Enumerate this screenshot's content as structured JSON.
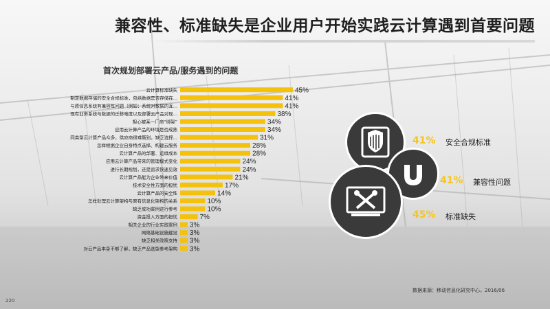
{
  "page": {
    "title": "兼容性、标准缺失是企业用户开始实践云计算遇到首要问题",
    "source": "数据来源：移动信息化研究中心，2016/06",
    "page_number": "220"
  },
  "colors": {
    "bar": "#f4c20d",
    "accent_text": "#f5c51e",
    "dark_circle": "#3a3a3a"
  },
  "highlights": [
    {
      "pct": "41%",
      "label": "安全合规标准",
      "icon": "shield-document-icon"
    },
    {
      "pct": "41%",
      "label": "兼容性问题",
      "icon": "magnet-icon"
    },
    {
      "pct": "45%",
      "label": "标准缺失",
      "icon": "monitor-tools-icon"
    }
  ],
  "chart_data": {
    "type": "bar",
    "orientation": "horizontal",
    "title": "首次规划部署云产品/服务遇到的问题",
    "value_suffix": "%",
    "categories": [
      "云计算标准缺失",
      "制定数据存储的安全合规标准，包括数据是否存储在...",
      "与原信息系统有兼容性问题（例如：系统对数据的互...",
      "现有业务系统与数据的迁移难度以及部署云产品对现...",
      "担心被某一厂商“绑架”",
      "应用云计算产品的环境是否成熟",
      "同类型云计算产品众多，供应商很难甄别，缺乏选择...",
      "怎样根据企业自身特点选择、构建云服务",
      "云计算产品的部署、运维成本",
      "应用云计算产品带来的管理模式变化",
      "进行长期规划，还是追求快速见效",
      "云计算产品能为企业带来价值",
      "技术安全性方面的担忧",
      "云计算产品的安全性",
      "怎样处理云计算架构与原有信息化架构的关系",
      "缺乏成功案例进行参考",
      "资金投入方面的担忧",
      "相关企业的行业实践案例",
      "网络基础设施建设",
      "缺乏相关政策支持",
      "对云产品本身不够了解，缺乏产品选型参考架构"
    ],
    "values": [
      45,
      41,
      41,
      38,
      34,
      34,
      31,
      28,
      28,
      24,
      24,
      21,
      17,
      14,
      10,
      10,
      7,
      3,
      3,
      3,
      3
    ]
  }
}
